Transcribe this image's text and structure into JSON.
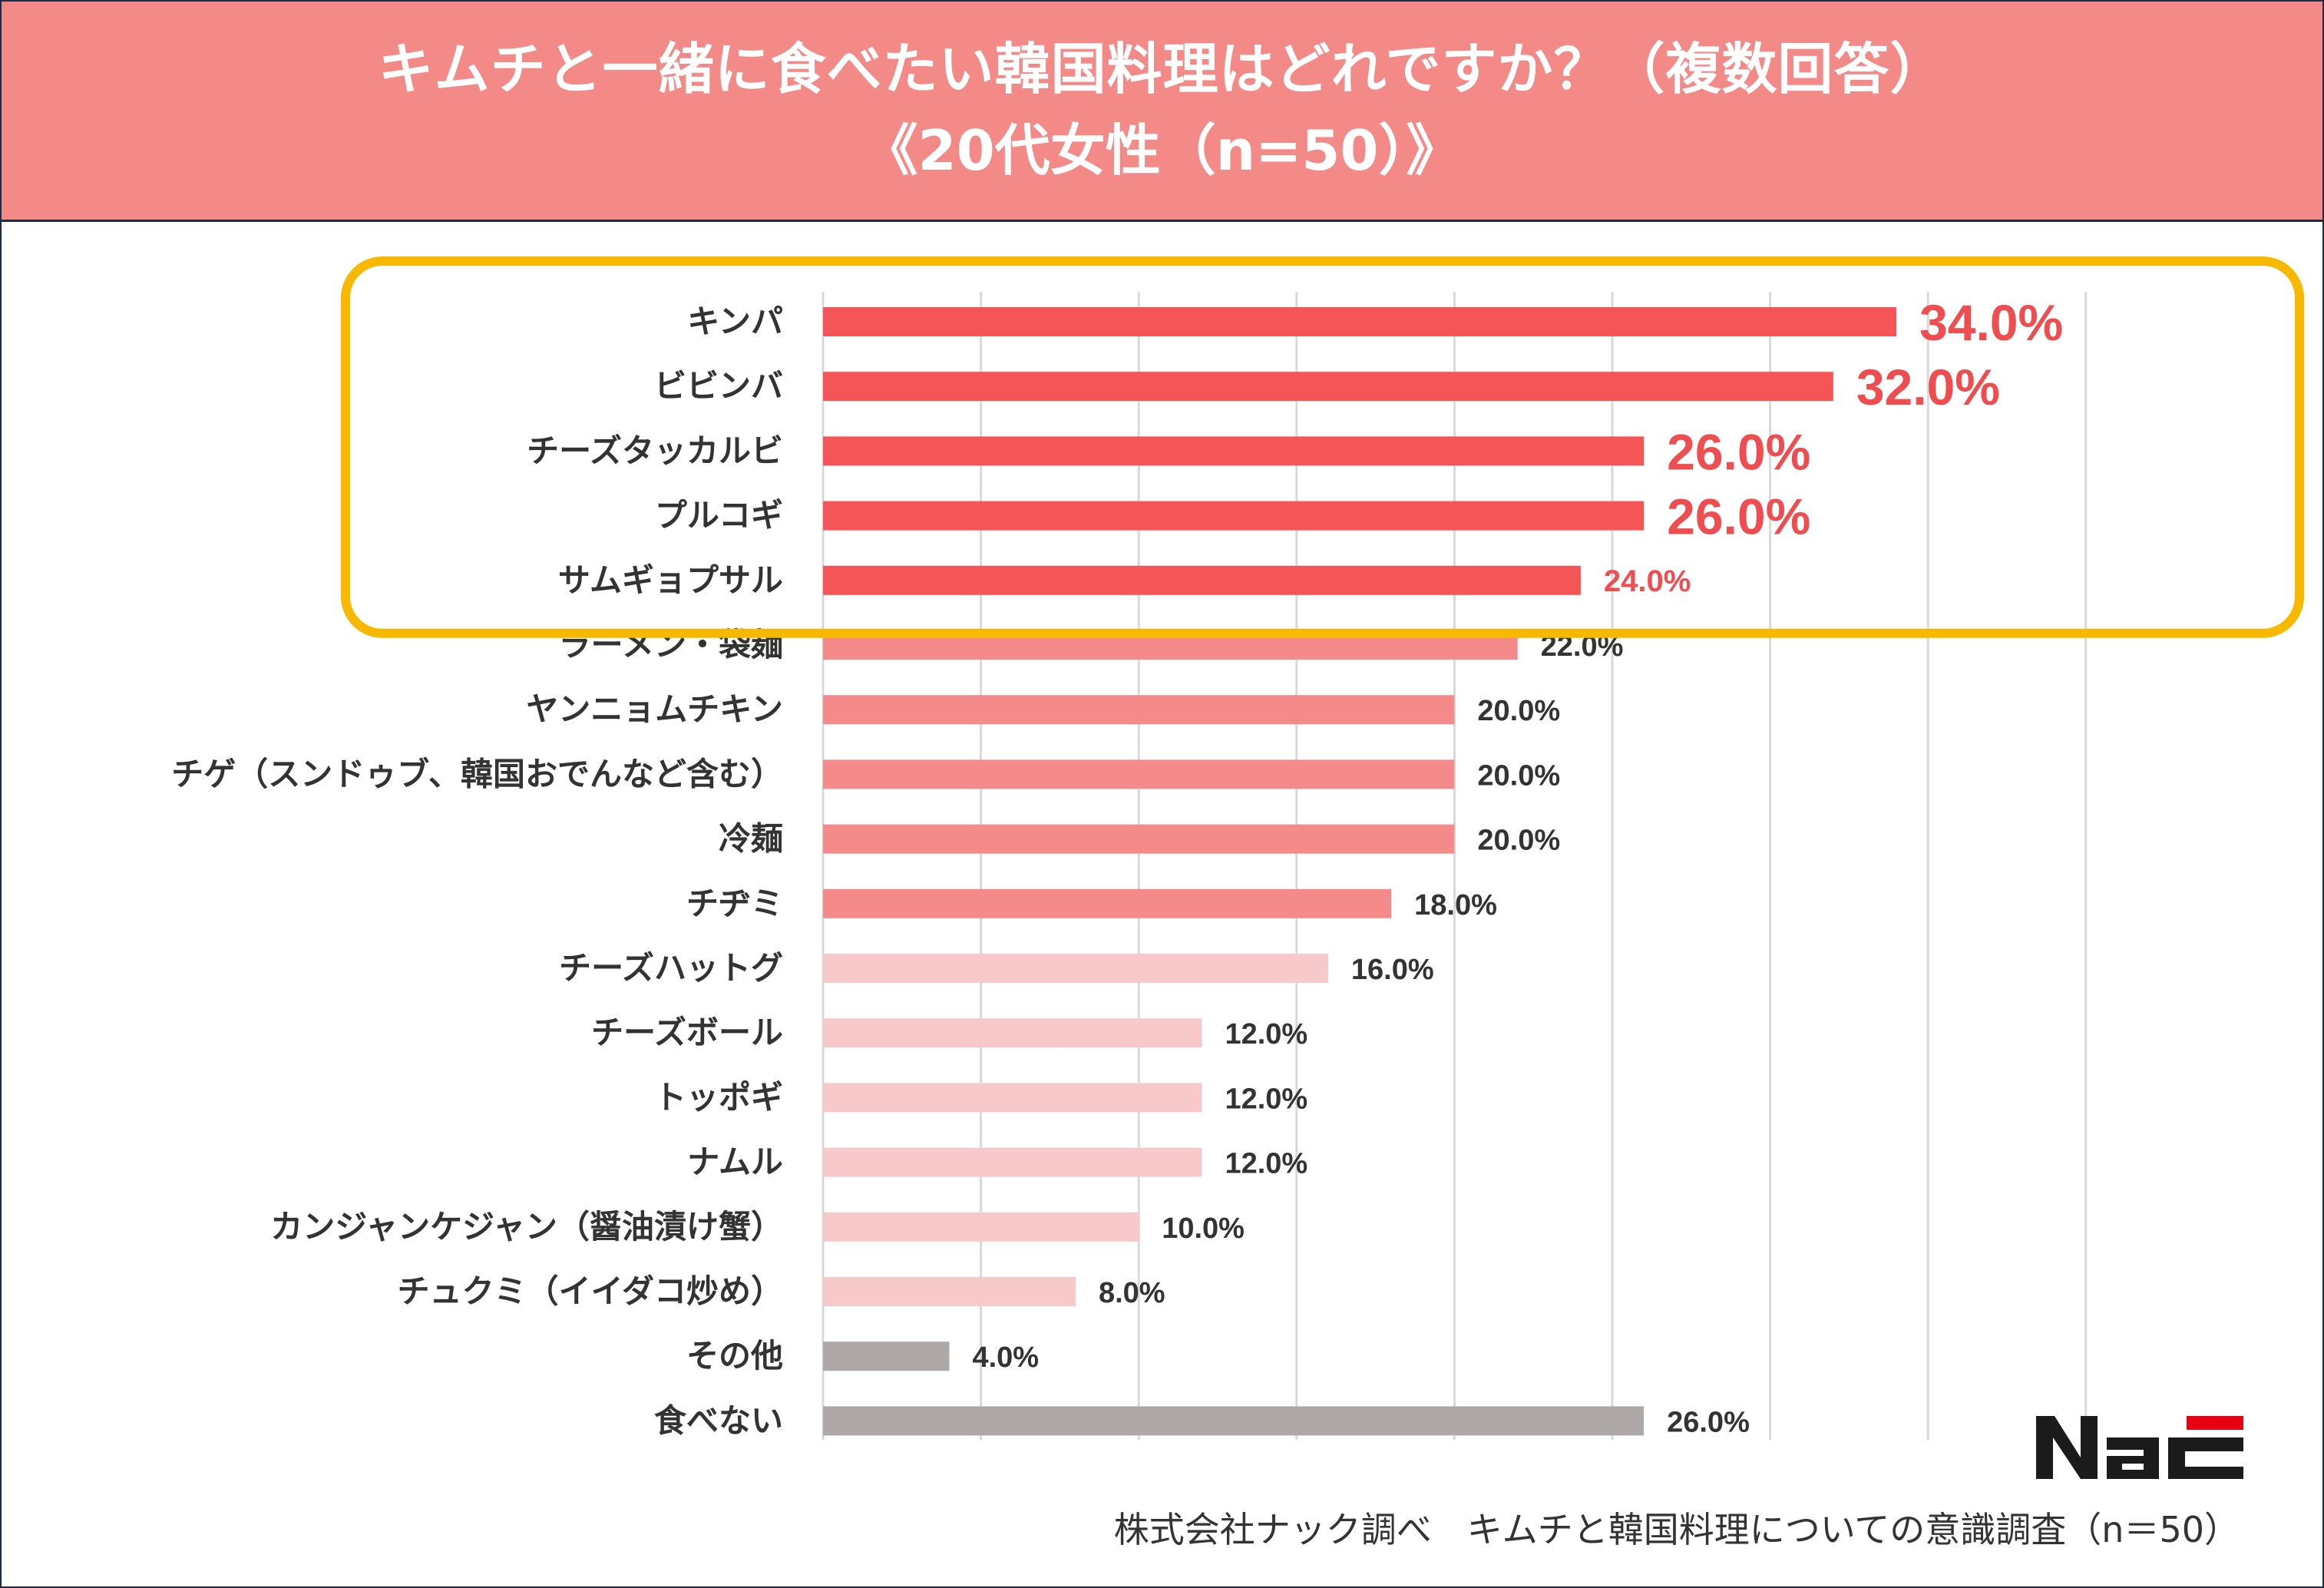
{
  "header": {
    "title_line1": "キムチと一緒に食べたい韓国料理はどれですか？（複数回答）",
    "title_line2": "《20代女性（n=50）》"
  },
  "colors": {
    "header_bg": "#f48a88",
    "top5": "#f55556",
    "mid": "#f58a8b",
    "low": "#f8c9cb",
    "other": "#afa8a8",
    "highlight_border": "#f8b800",
    "value_accent": "#f04d50"
  },
  "chart_data": {
    "type": "bar",
    "orientation": "horizontal",
    "categories": [
      "キンパ",
      "ビビンバ",
      "チーズタッカルビ",
      "プルコギ",
      "サムギョプサル",
      "ラーメン・袋麺",
      "ヤンニョムチキン",
      "チゲ（スンドゥブ、韓国おでんなど含む）",
      "冷麺",
      "チヂミ",
      "チーズハットグ",
      "チーズボール",
      "トッポギ",
      "ナムル",
      "カンジャンケジャン（醤油漬け蟹）",
      "チュクミ（イイダコ炒め）",
      "その他",
      "食べない"
    ],
    "values": [
      34.0,
      32.0,
      26.0,
      26.0,
      24.0,
      22.0,
      20.0,
      20.0,
      20.0,
      18.0,
      16.0,
      12.0,
      12.0,
      12.0,
      10.0,
      8.0,
      4.0,
      26.0
    ],
    "value_labels": [
      "34.0%",
      "32.0%",
      "26.0%",
      "26.0%",
      "24.0%",
      "22.0%",
      "20.0%",
      "20.0%",
      "20.0%",
      "18.0%",
      "16.0%",
      "12.0%",
      "12.0%",
      "12.0%",
      "10.0%",
      "8.0%",
      "4.0%",
      "26.0%"
    ],
    "color_groups": [
      "top5",
      "top5",
      "top5",
      "top5",
      "top5",
      "mid",
      "mid",
      "mid",
      "mid",
      "mid",
      "low",
      "low",
      "low",
      "low",
      "low",
      "low",
      "other",
      "other"
    ],
    "label_style": [
      "big",
      "big",
      "big",
      "big",
      "accent",
      "normal",
      "normal",
      "normal",
      "normal",
      "normal",
      "normal",
      "normal",
      "normal",
      "normal",
      "normal",
      "normal",
      "normal",
      "normal"
    ],
    "highlighted_top": 5,
    "xlim": [
      0,
      40
    ],
    "grid": "vertical every 5",
    "legend": "none"
  },
  "footer": {
    "logo_text": "NAC",
    "source": "株式会社ナック調べ　キムチと韓国料理についての意識調査（n＝50）"
  }
}
